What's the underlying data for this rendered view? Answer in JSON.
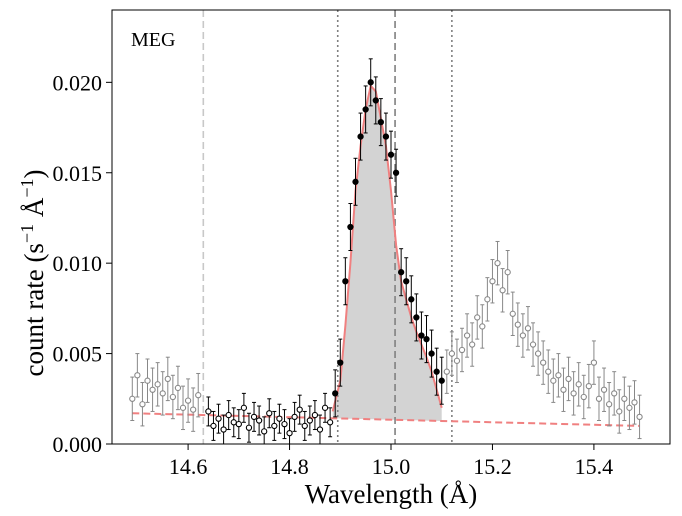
{
  "chart_data": {
    "type": "scatter",
    "panel_label": "MEG",
    "xlabel": "Wavelength (Å)",
    "ylabel": {
      "base": "count rate (s",
      "sup1": "−1",
      "mid": " Å",
      "sup2": "−1",
      "end": ")"
    },
    "xlim": [
      14.45,
      15.55
    ],
    "ylim": [
      0.0,
      0.024
    ],
    "x_ticks": [
      {
        "value": 14.6,
        "label": "14.6"
      },
      {
        "value": 14.8,
        "label": "14.8"
      },
      {
        "value": 15.0,
        "label": "15.0"
      },
      {
        "value": 15.2,
        "label": "15.2"
      },
      {
        "value": 15.4,
        "label": "15.4"
      }
    ],
    "y_ticks": [
      {
        "value": 0.0,
        "label": "0.000"
      },
      {
        "value": 0.005,
        "label": "0.005"
      },
      {
        "value": 0.01,
        "label": "0.010"
      },
      {
        "value": 0.015,
        "label": "0.015"
      },
      {
        "value": 0.02,
        "label": "0.020"
      }
    ],
    "vertical_lines": [
      {
        "x": 14.63,
        "style": "dashed",
        "color": "#c8c8c8"
      },
      {
        "x": 14.895,
        "style": "dotted",
        "color": "#808080"
      },
      {
        "x": 15.008,
        "style": "dashed",
        "color": "#808080"
      },
      {
        "x": 15.12,
        "style": "dotted",
        "color": "#808080"
      }
    ],
    "colors": {
      "model": "#f08080",
      "fill": "#d3d3d3",
      "unused": "#888888",
      "used": "#000000"
    },
    "series": [
      {
        "name": "unused-data",
        "marker": "open-circle",
        "x": [
          14.49,
          14.5,
          14.51,
          14.52,
          14.53,
          14.54,
          14.55,
          14.56,
          14.57,
          14.58,
          14.59,
          14.6,
          14.61,
          14.62,
          15.11,
          15.12,
          15.13,
          15.14,
          15.15,
          15.16,
          15.17,
          15.18,
          15.19,
          15.2,
          15.21,
          15.22,
          15.23,
          15.24,
          15.25,
          15.26,
          15.27,
          15.28,
          15.29,
          15.3,
          15.31,
          15.32,
          15.33,
          15.34,
          15.35,
          15.36,
          15.37,
          15.38,
          15.39,
          15.4,
          15.41,
          15.42,
          15.43,
          15.44,
          15.45,
          15.46,
          15.47,
          15.48,
          15.49
        ],
        "y": [
          0.0025,
          0.0038,
          0.0022,
          0.0035,
          0.003,
          0.0033,
          0.0028,
          0.0036,
          0.0026,
          0.0031,
          0.002,
          0.0024,
          0.0019,
          0.0027,
          0.004,
          0.005,
          0.0046,
          0.0052,
          0.006,
          0.0055,
          0.007,
          0.0065,
          0.008,
          0.009,
          0.01,
          0.0085,
          0.0095,
          0.0072,
          0.0066,
          0.006,
          0.0064,
          0.0055,
          0.005,
          0.0045,
          0.004,
          0.0035,
          0.0038,
          0.003,
          0.0036,
          0.0028,
          0.0033,
          0.0026,
          0.0032,
          0.0045,
          0.0025,
          0.003,
          0.0022,
          0.0028,
          0.0018,
          0.0025,
          0.002,
          0.0023,
          0.0015
        ],
        "err": 0.0012
      },
      {
        "name": "fitted-data",
        "marker": "circle",
        "x": [
          14.64,
          14.65,
          14.66,
          14.67,
          14.68,
          14.69,
          14.7,
          14.71,
          14.72,
          14.73,
          14.74,
          14.75,
          14.76,
          14.77,
          14.78,
          14.79,
          14.8,
          14.81,
          14.82,
          14.83,
          14.84,
          14.85,
          14.86,
          14.87,
          14.88
        ],
        "y": [
          0.0018,
          0.001,
          0.0014,
          0.0008,
          0.0016,
          0.0012,
          0.0011,
          0.002,
          0.0009,
          0.0015,
          0.0013,
          0.0007,
          0.0017,
          0.001,
          0.0014,
          0.0011,
          0.0006,
          0.0015,
          0.0019,
          0.001,
          0.0013,
          0.0016,
          0.0008,
          0.002,
          0.0012
        ],
        "err": 0.0008,
        "filled": false
      },
      {
        "name": "line-data",
        "marker": "filled-circle",
        "x": [
          14.89,
          14.9,
          14.91,
          14.92,
          14.93,
          14.94,
          14.95,
          14.96,
          14.97,
          14.98,
          14.99,
          15.0,
          15.01,
          15.02,
          15.03,
          15.04,
          15.05,
          15.06,
          15.07,
          15.08,
          15.09,
          15.1
        ],
        "y": [
          0.0028,
          0.0045,
          0.009,
          0.012,
          0.0145,
          0.017,
          0.0185,
          0.02,
          0.019,
          0.0178,
          0.017,
          0.016,
          0.015,
          0.0095,
          0.009,
          0.008,
          0.007,
          0.006,
          0.0058,
          0.005,
          0.004,
          0.0035
        ],
        "err": 0.0013
      }
    ],
    "model_curve": {
      "name": "fit-model",
      "x": [
        14.885,
        14.9,
        14.91,
        14.92,
        14.93,
        14.94,
        14.95,
        14.96,
        14.97,
        14.98,
        14.99,
        15.0,
        15.01,
        15.02,
        15.03,
        15.04,
        15.05,
        15.06,
        15.07,
        15.08,
        15.09,
        15.1
      ],
      "y": [
        0.0018,
        0.0035,
        0.0065,
        0.01,
        0.014,
        0.0165,
        0.0185,
        0.0198,
        0.0195,
        0.018,
        0.0165,
        0.014,
        0.011,
        0.009,
        0.008,
        0.007,
        0.0062,
        0.0055,
        0.0048,
        0.004,
        0.003,
        0.002
      ]
    },
    "continuum": {
      "name": "continuum-model",
      "x": [
        14.49,
        15.49
      ],
      "y": [
        0.0017,
        0.001
      ]
    }
  }
}
